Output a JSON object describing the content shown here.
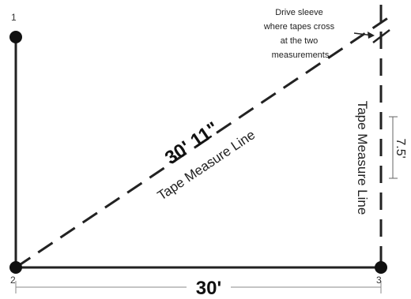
{
  "points": [
    {
      "label": "1"
    },
    {
      "label": "2"
    },
    {
      "label": "3"
    }
  ],
  "note_lines": [
    "Drive sleeve",
    "where tapes cross",
    "at the two",
    "measurements"
  ],
  "diagonal_measure": "30' 11\"",
  "diagonal_tape_label": "Tape Measure Line",
  "vertical_tape_label": "Tape Measure Line",
  "vertical_measure": "7.5'",
  "bottom_measure": "30'"
}
